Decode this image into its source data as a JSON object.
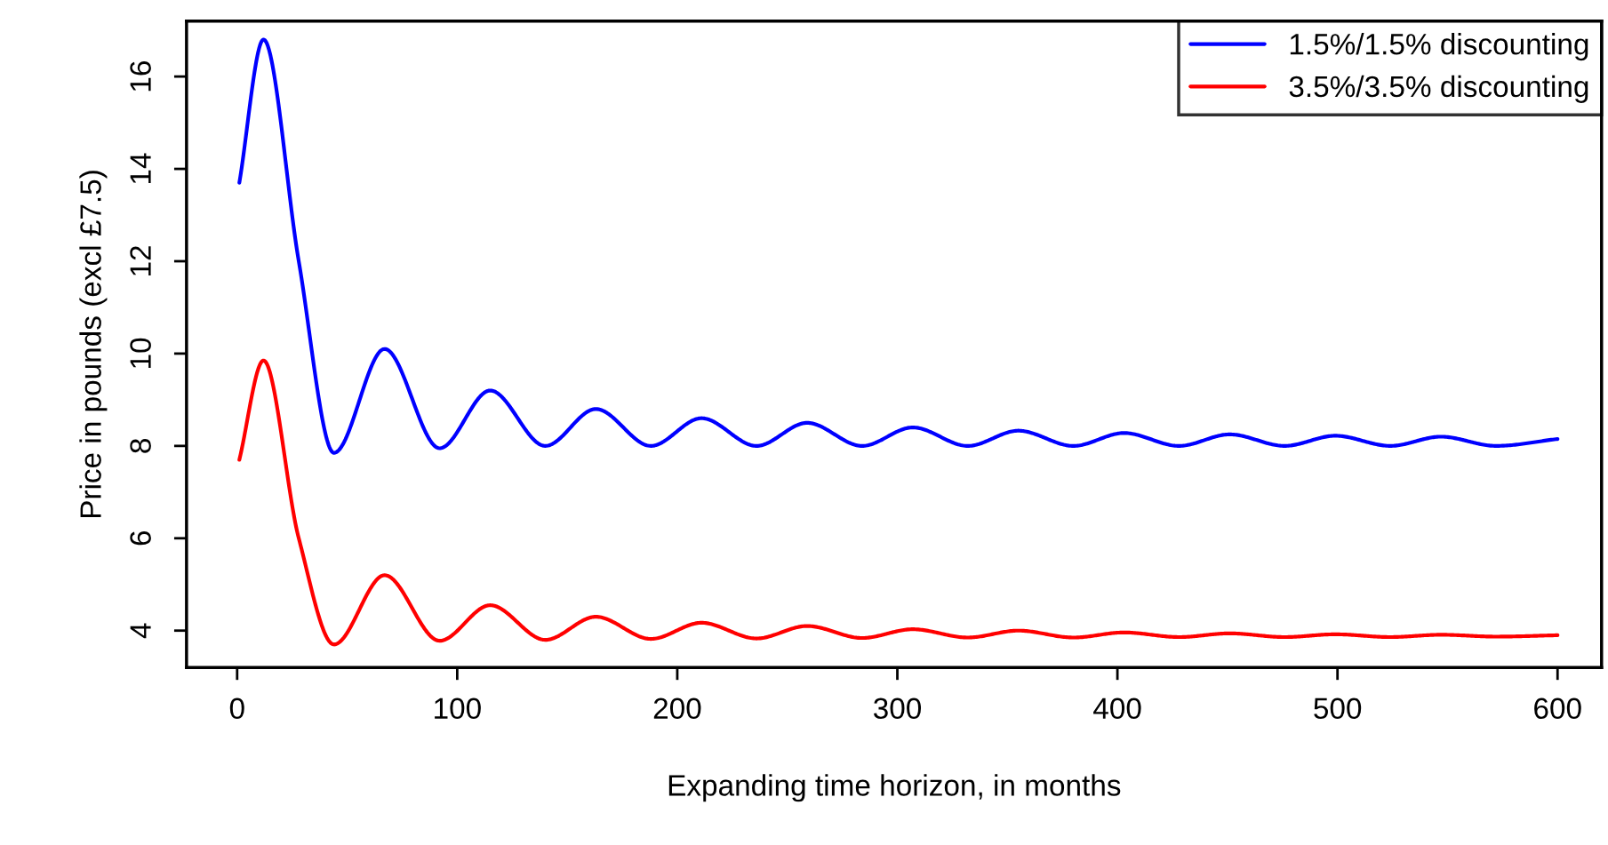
{
  "chart_data": {
    "type": "line",
    "xlabel": "Expanding time horizon, in months",
    "ylabel": "Price in pounds (excl £7.5)",
    "xlim": [
      -23,
      620
    ],
    "ylim": [
      3.2,
      17.2
    ],
    "xticks": [
      0,
      100,
      200,
      300,
      400,
      500,
      600
    ],
    "yticks": [
      4,
      6,
      8,
      10,
      12,
      14,
      16
    ],
    "grid": false,
    "legend": "top right",
    "marker": "none",
    "line_style": "solid",
    "series": [
      {
        "name": "1.5%/1.5% discounting",
        "color": "#0000ff",
        "x": [
          1,
          12,
          28,
          44,
          67,
          92,
          115,
          140,
          163,
          188,
          211,
          236,
          259,
          284,
          307,
          332,
          355,
          380,
          403,
          428,
          451,
          476,
          499,
          524,
          547,
          572,
          600
        ],
        "values": [
          13.7,
          16.8,
          12.0,
          7.85,
          10.1,
          7.95,
          9.2,
          8.0,
          8.8,
          8.0,
          8.6,
          8.0,
          8.5,
          8.0,
          8.4,
          8.0,
          8.33,
          8.0,
          8.28,
          8.0,
          8.25,
          8.0,
          8.22,
          8.0,
          8.2,
          8.0,
          8.15
        ]
      },
      {
        "name": "3.5%/3.5% discounting",
        "color": "#ff0000",
        "x": [
          1,
          12,
          28,
          44,
          67,
          92,
          115,
          140,
          163,
          188,
          211,
          236,
          259,
          284,
          307,
          332,
          355,
          380,
          403,
          428,
          451,
          476,
          499,
          524,
          547,
          572,
          600
        ],
        "values": [
          7.7,
          9.85,
          6.0,
          3.7,
          5.2,
          3.78,
          4.55,
          3.8,
          4.3,
          3.82,
          4.17,
          3.83,
          4.1,
          3.84,
          4.03,
          3.85,
          4.0,
          3.85,
          3.96,
          3.86,
          3.94,
          3.86,
          3.92,
          3.86,
          3.91,
          3.87,
          3.9
        ]
      }
    ]
  }
}
